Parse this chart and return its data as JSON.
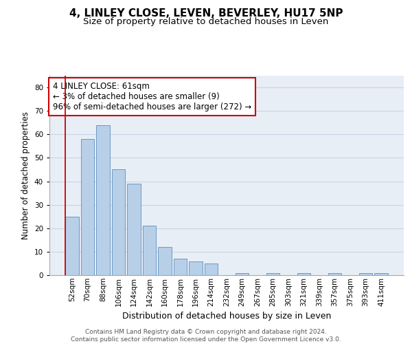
{
  "title_line1": "4, LINLEY CLOSE, LEVEN, BEVERLEY, HU17 5NP",
  "title_line2": "Size of property relative to detached houses in Leven",
  "xlabel": "Distribution of detached houses by size in Leven",
  "ylabel": "Number of detached properties",
  "categories": [
    "52sqm",
    "70sqm",
    "88sqm",
    "106sqm",
    "124sqm",
    "142sqm",
    "160sqm",
    "178sqm",
    "196sqm",
    "214sqm",
    "232sqm",
    "249sqm",
    "267sqm",
    "285sqm",
    "303sqm",
    "321sqm",
    "339sqm",
    "357sqm",
    "375sqm",
    "393sqm",
    "411sqm"
  ],
  "values": [
    25,
    58,
    64,
    45,
    39,
    21,
    12,
    7,
    6,
    5,
    0,
    1,
    0,
    1,
    0,
    1,
    0,
    1,
    0,
    1,
    1
  ],
  "bar_color": "#b8cfe8",
  "bar_edge_color": "#5a8fc0",
  "highlight_bar_index": 0,
  "highlight_edge_color": "#cc0000",
  "annotation_box_text": "4 LINLEY CLOSE: 61sqm\n← 3% of detached houses are smaller (9)\n96% of semi-detached houses are larger (272) →",
  "ylim": [
    0,
    85
  ],
  "yticks": [
    0,
    10,
    20,
    30,
    40,
    50,
    60,
    70,
    80
  ],
  "grid_color": "#c8d4e4",
  "background_color": "#e8eef6",
  "footer_text": "Contains HM Land Registry data © Crown copyright and database right 2024.\nContains public sector information licensed under the Open Government Licence v3.0.",
  "title_fontsize": 11,
  "subtitle_fontsize": 9.5,
  "xlabel_fontsize": 9,
  "ylabel_fontsize": 8.5,
  "tick_fontsize": 7.5,
  "annotation_fontsize": 8.5,
  "red_line_x": 0.5
}
